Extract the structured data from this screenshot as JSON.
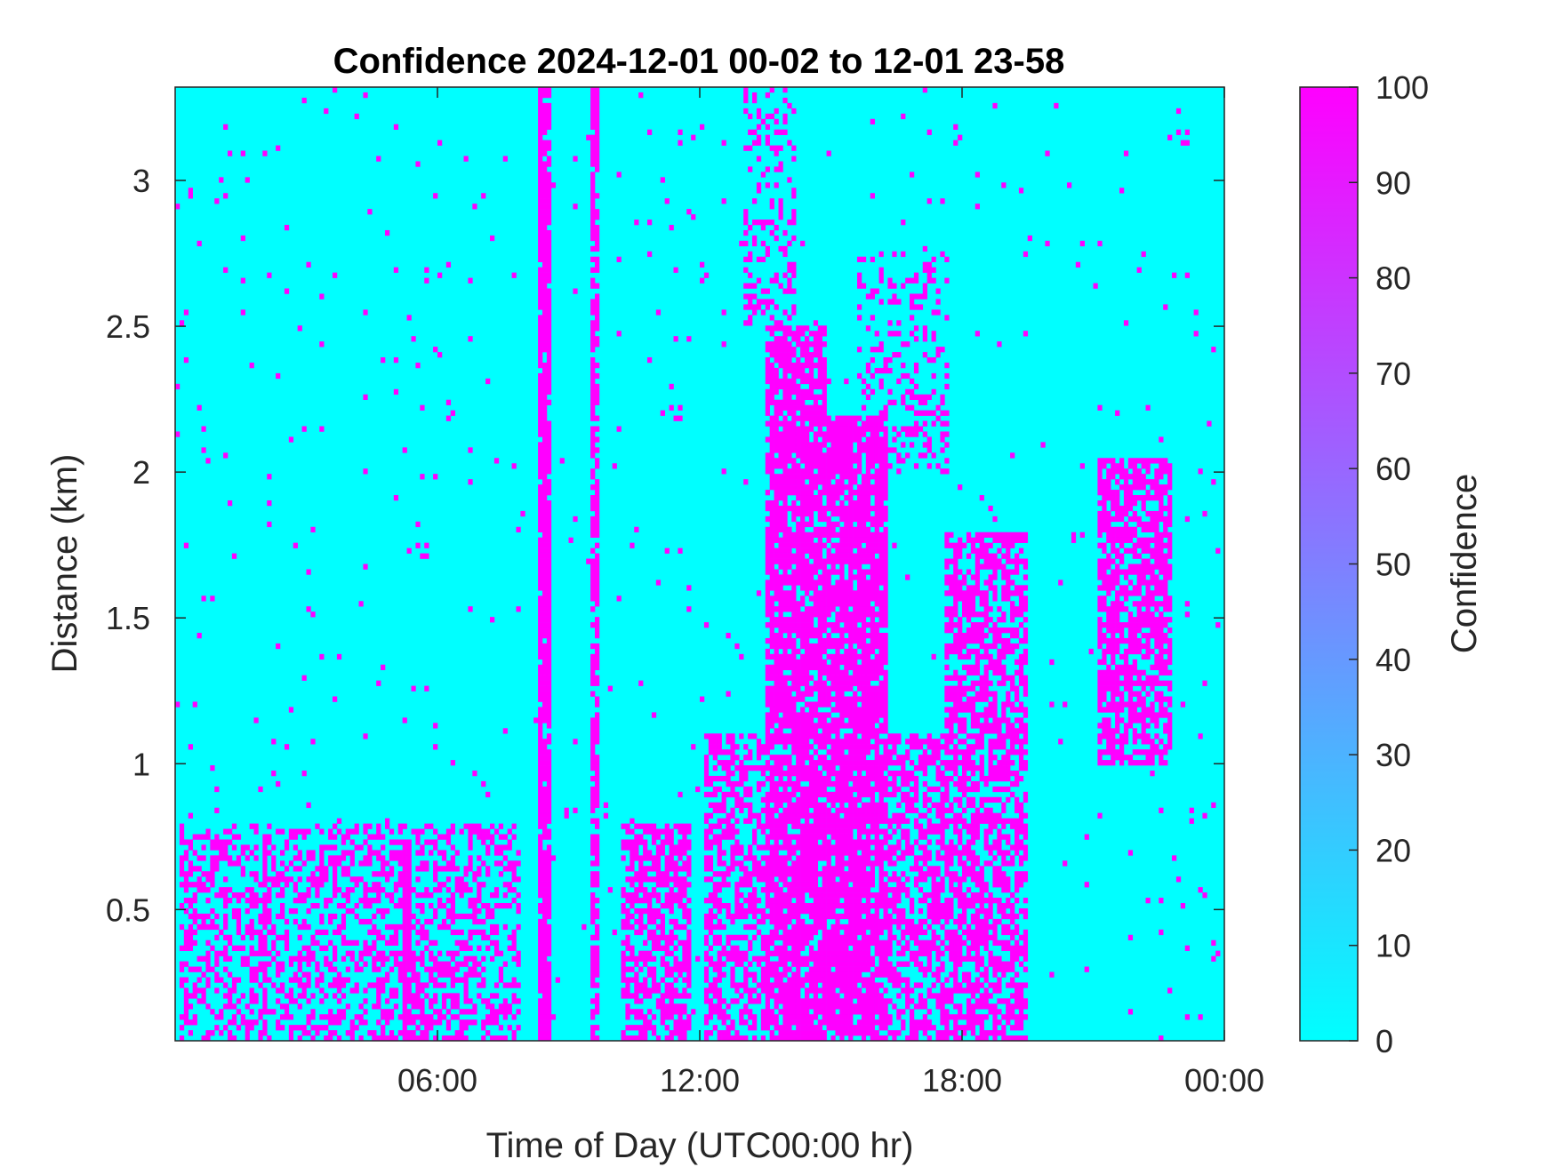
{
  "chart_data": {
    "type": "heatmap",
    "title": "Confidence 2024-12-01 00-02 to 12-01 23-58",
    "xlabel": "Time of Day (UTC00:00 hr)",
    "ylabel": "Distance (km)",
    "colorbar_label": "Confidence",
    "x_unit": "hours",
    "xlim": [
      0,
      24
    ],
    "ylim": [
      0.05,
      3.32
    ],
    "clim": [
      0,
      100
    ],
    "x_ticks": [
      {
        "value": 6,
        "label": "06:00"
      },
      {
        "value": 12,
        "label": "12:00"
      },
      {
        "value": 18,
        "label": "18:00"
      },
      {
        "value": 24,
        "label": "00:00"
      }
    ],
    "y_ticks": [
      {
        "value": 0.5,
        "label": "0.5"
      },
      {
        "value": 1,
        "label": "1"
      },
      {
        "value": 1.5,
        "label": "1.5"
      },
      {
        "value": 2,
        "label": "2"
      },
      {
        "value": 2.5,
        "label": "2.5"
      },
      {
        "value": 3,
        "label": "3"
      }
    ],
    "colorbar_ticks": [
      {
        "value": 0,
        "label": "0"
      },
      {
        "value": 10,
        "label": "10"
      },
      {
        "value": 20,
        "label": "20"
      },
      {
        "value": 30,
        "label": "30"
      },
      {
        "value": 40,
        "label": "40"
      },
      {
        "value": 50,
        "label": "50"
      },
      {
        "value": 60,
        "label": "60"
      },
      {
        "value": 70,
        "label": "70"
      },
      {
        "value": 80,
        "label": "80"
      },
      {
        "value": 90,
        "label": "90"
      },
      {
        "value": 100,
        "label": "100"
      }
    ],
    "colormap": {
      "low": "#00ffff",
      "high": "#ff00ff"
    },
    "grid": false,
    "high_confidence_regions": [
      {
        "x": [
          0.1,
          7.9
        ],
        "y": [
          0.05,
          0.8
        ],
        "density": 0.42
      },
      {
        "x": [
          5.2,
          5.4
        ],
        "y": [
          0.05,
          0.72
        ],
        "density": 0.9
      },
      {
        "x": [
          2.0,
          2.1
        ],
        "y": [
          0.05,
          0.75
        ],
        "density": 0.85
      },
      {
        "x": [
          8.3,
          8.6
        ],
        "y": [
          0.05,
          3.32
        ],
        "density": 0.92
      },
      {
        "x": [
          9.55,
          9.65
        ],
        "y": [
          0.05,
          3.32
        ],
        "density": 0.7
      },
      {
        "x": [
          10.2,
          11.8
        ],
        "y": [
          0.05,
          0.8
        ],
        "density": 0.6
      },
      {
        "x": [
          12.1,
          13.5
        ],
        "y": [
          0.05,
          1.1
        ],
        "density": 0.55
      },
      {
        "x": [
          13.5,
          14.9
        ],
        "y": [
          0.05,
          2.5
        ],
        "density": 0.82
      },
      {
        "x": [
          14.9,
          16.3
        ],
        "y": [
          0.05,
          2.2
        ],
        "density": 0.85
      },
      {
        "x": [
          16.3,
          17.6
        ],
        "y": [
          0.05,
          1.1
        ],
        "density": 0.55
      },
      {
        "x": [
          17.6,
          19.5
        ],
        "y": [
          0.05,
          1.8
        ],
        "density": 0.62
      },
      {
        "x": [
          21.1,
          22.8
        ],
        "y": [
          1.0,
          2.05
        ],
        "density": 0.7
      },
      {
        "x": [
          13.0,
          14.2
        ],
        "y": [
          2.5,
          3.32
        ],
        "density": 0.25
      },
      {
        "x": [
          15.6,
          17.7
        ],
        "y": [
          2.0,
          2.75
        ],
        "density": 0.25
      },
      {
        "x": [
          0.0,
          24.0
        ],
        "y": [
          0.05,
          3.32
        ],
        "density": 0.012
      }
    ]
  }
}
